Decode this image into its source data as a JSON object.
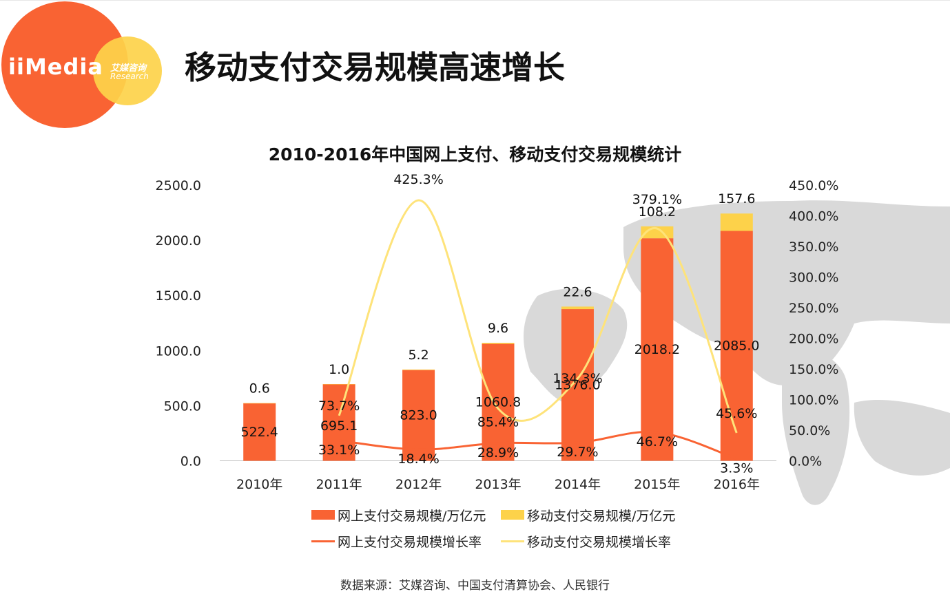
{
  "logo": {
    "main": "iiMedia",
    "cn": "艾媒咨询",
    "en": "Research"
  },
  "page_title": "移动支付交易规模高速增长",
  "source": "数据来源：艾媒咨询、中国支付清算协会、人民银行",
  "colors": {
    "online": "#f96333",
    "mobile": "#fdd24a",
    "mobile_line": "#fee37a",
    "map": "#d9d9d9"
  },
  "chart_data": {
    "type": "bar",
    "title": "2010-2016年中国网上支付、移动支付交易规模统计",
    "categories": [
      "2010年",
      "2011年",
      "2012年",
      "2013年",
      "2014年",
      "2015年",
      "2016年"
    ],
    "stacked": true,
    "ylim": [
      0,
      2500
    ],
    "y2lim": [
      0,
      450
    ],
    "y_ticks": [
      "0.0",
      "500.0",
      "1000.0",
      "1500.0",
      "2000.0",
      "2500.0"
    ],
    "y2_ticks": [
      "0.0%",
      "50.0%",
      "100.0%",
      "150.0%",
      "200.0%",
      "250.0%",
      "300.0%",
      "350.0%",
      "400.0%",
      "450.0%"
    ],
    "series": [
      {
        "name": "网上支付交易规模/万亿元",
        "kind": "bar",
        "axis": "left",
        "values": [
          522.4,
          695.1,
          823.0,
          1060.8,
          1376.0,
          2018.2,
          2085.0
        ],
        "labels": [
          "522.4",
          "695.1",
          "823.0",
          "1060.8",
          "1376.0",
          "2018.2",
          "2085.0"
        ]
      },
      {
        "name": "移动支付交易规模/万亿元",
        "kind": "bar",
        "axis": "left",
        "values": [
          0.6,
          1.0,
          5.2,
          9.6,
          22.6,
          108.2,
          157.6
        ],
        "labels": [
          "0.6",
          "1.0",
          "5.2",
          "9.6",
          "22.6",
          "108.2",
          "157.6"
        ]
      },
      {
        "name": "网上支付交易规模增长率",
        "kind": "line",
        "axis": "right",
        "values": [
          null,
          33.1,
          18.4,
          28.9,
          29.7,
          46.7,
          3.3
        ],
        "labels": [
          "",
          "33.1%",
          "18.4%",
          "28.9%",
          "29.7%",
          "46.7%",
          "3.3%"
        ]
      },
      {
        "name": "移动支付交易规模增长率",
        "kind": "line",
        "axis": "right",
        "values": [
          null,
          73.7,
          425.3,
          85.4,
          134.3,
          379.1,
          45.6
        ],
        "labels": [
          "",
          "73.7%",
          "425.3%",
          "85.4%",
          "134.3%",
          "379.1%",
          "45.6%"
        ]
      }
    ]
  }
}
